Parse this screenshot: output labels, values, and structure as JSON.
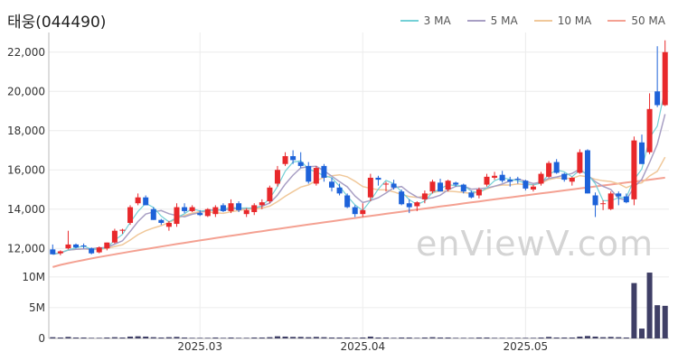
{
  "title": "태웅(044490)",
  "watermark": "enViewV.com",
  "colors": {
    "up": "#e8282b",
    "down": "#1d62d9",
    "volume": "#3f3f66",
    "grid": "#ececec",
    "axis": "#bbbbbb",
    "ma3": "#74d0d6",
    "ma5": "#a89fc4",
    "ma10": "#f0c89a",
    "ma50": "#f4a192"
  },
  "legend": [
    {
      "label": "3 MA",
      "color": "#74d0d6"
    },
    {
      "label": "5 MA",
      "color": "#a89fc4"
    },
    {
      "label": "10 MA",
      "color": "#f0c89a"
    },
    {
      "label": "50 MA",
      "color": "#f4a192"
    }
  ],
  "chart_data": {
    "type": "candlestick",
    "y_ticks": [
      "12,000",
      "14,000",
      "16,000",
      "18,000",
      "20,000",
      "22,000"
    ],
    "y_tick_values": [
      12000,
      14000,
      16000,
      18000,
      20000,
      22000
    ],
    "ylim": [
      11000,
      23000
    ],
    "volume_ticks": [
      "0",
      "5M",
      "10M"
    ],
    "volume_tick_values": [
      0,
      5000000,
      10000000
    ],
    "volume_lim": [
      0,
      11000000
    ],
    "x_ticks": [
      {
        "label": "2025.03",
        "index": 19
      },
      {
        "label": "2025.04",
        "index": 40
      },
      {
        "label": "2025.05",
        "index": 61
      }
    ],
    "ohlc": [
      [
        11950,
        12200,
        11700,
        11700
      ],
      [
        11750,
        11900,
        11650,
        11850
      ],
      [
        12000,
        12900,
        11950,
        12200
      ],
      [
        12200,
        12250,
        12000,
        12050
      ],
      [
        12150,
        12250,
        12000,
        12100
      ],
      [
        12000,
        12050,
        11700,
        11750
      ],
      [
        11800,
        12100,
        11750,
        12050
      ],
      [
        12000,
        12300,
        11900,
        12300
      ],
      [
        12300,
        13000,
        12250,
        12900
      ],
      [
        12900,
        13000,
        12750,
        12950
      ],
      [
        13300,
        14200,
        13200,
        14100
      ],
      [
        14300,
        14800,
        14200,
        14600
      ],
      [
        14600,
        14700,
        14200,
        14200
      ],
      [
        14000,
        14100,
        13450,
        13450
      ],
      [
        13450,
        13500,
        13200,
        13300
      ],
      [
        13100,
        13400,
        12900,
        13300
      ],
      [
        13250,
        14300,
        13100,
        14100
      ],
      [
        14100,
        14300,
        13800,
        13900
      ],
      [
        13900,
        14200,
        13850,
        14100
      ],
      [
        13800,
        13950,
        13650,
        13700
      ],
      [
        13650,
        14050,
        13600,
        14000
      ],
      [
        13750,
        14200,
        13600,
        14100
      ],
      [
        14200,
        14300,
        13850,
        13900
      ],
      [
        13900,
        14500,
        13800,
        14300
      ],
      [
        14300,
        14400,
        13850,
        13950
      ],
      [
        13750,
        14050,
        13600,
        13950
      ],
      [
        13850,
        14300,
        13700,
        14200
      ],
      [
        14200,
        14500,
        14000,
        14350
      ],
      [
        14400,
        15200,
        14300,
        15100
      ],
      [
        15300,
        16200,
        15150,
        16000
      ],
      [
        16300,
        16900,
        16200,
        16700
      ],
      [
        16700,
        17000,
        16300,
        16500
      ],
      [
        16400,
        16900,
        16100,
        16200
      ],
      [
        16200,
        16400,
        15300,
        15400
      ],
      [
        15300,
        16200,
        15200,
        16100
      ],
      [
        16200,
        16300,
        15400,
        15600
      ],
      [
        15400,
        15600,
        14900,
        15100
      ],
      [
        15100,
        15300,
        14700,
        14800
      ],
      [
        14700,
        14800,
        14050,
        14100
      ],
      [
        14100,
        14200,
        13600,
        13750
      ],
      [
        13750,
        14300,
        13600,
        13950
      ],
      [
        14600,
        15800,
        14400,
        15600
      ],
      [
        15600,
        15700,
        15200,
        15500
      ],
      [
        15300,
        15400,
        14900,
        15300
      ],
      [
        15300,
        15500,
        15000,
        15100
      ],
      [
        14900,
        15000,
        14200,
        14250
      ],
      [
        14300,
        14500,
        13800,
        14100
      ],
      [
        14150,
        14400,
        13900,
        14350
      ],
      [
        14500,
        14950,
        14300,
        14800
      ],
      [
        14900,
        15500,
        14800,
        15400
      ],
      [
        15350,
        15550,
        14900,
        14900
      ],
      [
        15000,
        15500,
        14900,
        15450
      ],
      [
        15350,
        15400,
        15150,
        15250
      ],
      [
        15250,
        15300,
        14800,
        14900
      ],
      [
        14850,
        14950,
        14550,
        14600
      ],
      [
        14700,
        15100,
        14550,
        15000
      ],
      [
        15250,
        15800,
        15150,
        15650
      ],
      [
        15600,
        15900,
        15500,
        15700
      ],
      [
        15750,
        15950,
        15350,
        15450
      ],
      [
        15500,
        15650,
        15150,
        15400
      ],
      [
        15550,
        15650,
        15300,
        15500
      ],
      [
        15450,
        15500,
        14950,
        15050
      ],
      [
        15000,
        15250,
        14900,
        15150
      ],
      [
        15300,
        15900,
        15200,
        15800
      ],
      [
        15650,
        16450,
        15600,
        16350
      ],
      [
        16400,
        16550,
        15800,
        15850
      ],
      [
        15800,
        15850,
        15400,
        15500
      ],
      [
        15400,
        15650,
        15200,
        15600
      ],
      [
        15850,
        17050,
        15800,
        16900
      ],
      [
        17000,
        17050,
        14800,
        14800
      ],
      [
        14700,
        14850,
        13600,
        14200
      ],
      [
        14300,
        14450,
        13950,
        14300
      ],
      [
        14000,
        14900,
        13950,
        14800
      ],
      [
        14800,
        14900,
        14200,
        14650
      ],
      [
        14650,
        14800,
        14300,
        14350
      ],
      [
        14500,
        17700,
        14200,
        17500
      ],
      [
        17400,
        17800,
        16300,
        16300
      ],
      [
        16900,
        19900,
        16800,
        19100
      ],
      [
        20000,
        22300,
        19200,
        19300
      ],
      [
        19300,
        22600,
        19250,
        22000
      ]
    ],
    "volume": [
      200000,
      150000,
      250000,
      150000,
      150000,
      100000,
      100000,
      150000,
      200000,
      150000,
      300000,
      350000,
      300000,
      200000,
      150000,
      200000,
      250000,
      150000,
      100000,
      100000,
      100000,
      150000,
      100000,
      150000,
      100000,
      100000,
      150000,
      150000,
      200000,
      350000,
      300000,
      250000,
      250000,
      200000,
      250000,
      200000,
      150000,
      150000,
      150000,
      100000,
      150000,
      300000,
      150000,
      150000,
      100000,
      150000,
      150000,
      100000,
      150000,
      200000,
      150000,
      150000,
      100000,
      100000,
      100000,
      150000,
      150000,
      100000,
      100000,
      100000,
      100000,
      100000,
      100000,
      150000,
      250000,
      150000,
      150000,
      150000,
      300000,
      400000,
      300000,
      200000,
      250000,
      200000,
      150000,
      9000000,
      1600000,
      10700000,
      5400000,
      5300000
    ],
    "ma50_start": 11050,
    "ma50_end": 15600
  }
}
